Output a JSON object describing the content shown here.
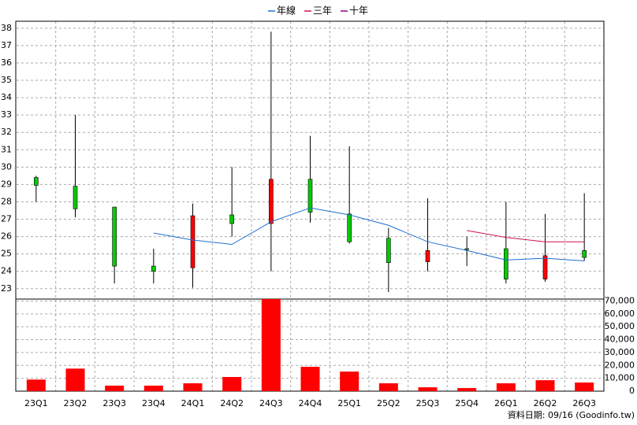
{
  "chart_data": [
    {
      "type": "candlestick",
      "open": [
        29.4,
        28.9,
        27.7,
        24.3,
        24.2,
        27.25,
        26.75,
        29.3,
        27.3,
        25.9,
        24.55,
        25.3,
        25.3,
        23.55,
        25.2
      ],
      "high": [
        29.5,
        33.0,
        27.7,
        25.3,
        27.9,
        30.0,
        37.8,
        31.8,
        31.2,
        26.5,
        28.2,
        26.0,
        28.0,
        27.3,
        28.5
      ],
      "low": [
        28.0,
        27.1,
        23.3,
        23.3,
        23.05,
        26.0,
        24.0,
        26.8,
        25.6,
        22.8,
        24.0,
        24.3,
        23.3,
        23.4,
        24.6
      ],
      "close": [
        28.95,
        27.6,
        24.3,
        24.0,
        27.2,
        26.75,
        29.3,
        27.4,
        25.7,
        24.5,
        25.2,
        25.25,
        23.55,
        24.9,
        24.8
      ],
      "up_color": "#ff0000",
      "down_color": "#00cc00",
      "lines": [
        {
          "name": "年線",
          "color": "#1f6fd0",
          "values": [
            null,
            null,
            null,
            26.2,
            25.8,
            25.55,
            26.85,
            27.65,
            27.25,
            26.65,
            25.7,
            25.2,
            24.65,
            24.75,
            24.6
          ]
        },
        {
          "name": "三年",
          "color": "#cc1155",
          "values": [
            null,
            null,
            null,
            null,
            null,
            null,
            null,
            null,
            null,
            null,
            null,
            26.35,
            25.95,
            25.7,
            25.7
          ]
        },
        {
          "name": "十年",
          "color": "#880088",
          "values": [
            null,
            null,
            null,
            null,
            null,
            null,
            null,
            null,
            null,
            null,
            null,
            null,
            null,
            null,
            null
          ]
        }
      ],
      "ylim": [
        22.4,
        38.4
      ],
      "yticks": [
        23,
        24,
        25,
        26,
        27,
        28,
        29,
        30,
        31,
        32,
        33,
        34,
        35,
        36,
        37,
        38
      ],
      "grid": true
    },
    {
      "type": "bar",
      "categories": [
        "23Q1",
        "23Q2",
        "23Q3",
        "23Q4",
        "24Q1",
        "24Q2",
        "24Q3",
        "24Q4",
        "25Q1",
        "25Q2",
        "25Q3",
        "25Q4",
        "26Q1",
        "26Q2",
        "26Q3"
      ],
      "values": [
        9000,
        17500,
        4300,
        4300,
        6100,
        11000,
        71500,
        18900,
        15200,
        6100,
        3000,
        2400,
        6100,
        8500,
        6700
      ],
      "color": "#ff0000",
      "ylim": [
        0,
        71500
      ],
      "yticks": [
        0,
        {
          "value": 10000,
          "label": "10,000"
        },
        {
          "value": 20000,
          "label": "20,000"
        },
        {
          "value": 30000,
          "label": "30,000"
        },
        {
          "value": 40000,
          "label": "40,000"
        },
        {
          "value": 50000,
          "label": "50,000"
        },
        {
          "value": 60000,
          "label": "60,000"
        },
        {
          "value": 70000,
          "label": "70,000"
        }
      ],
      "grid": true
    }
  ],
  "note": "資料日期: 09/16 (Goodinfo.tw)"
}
